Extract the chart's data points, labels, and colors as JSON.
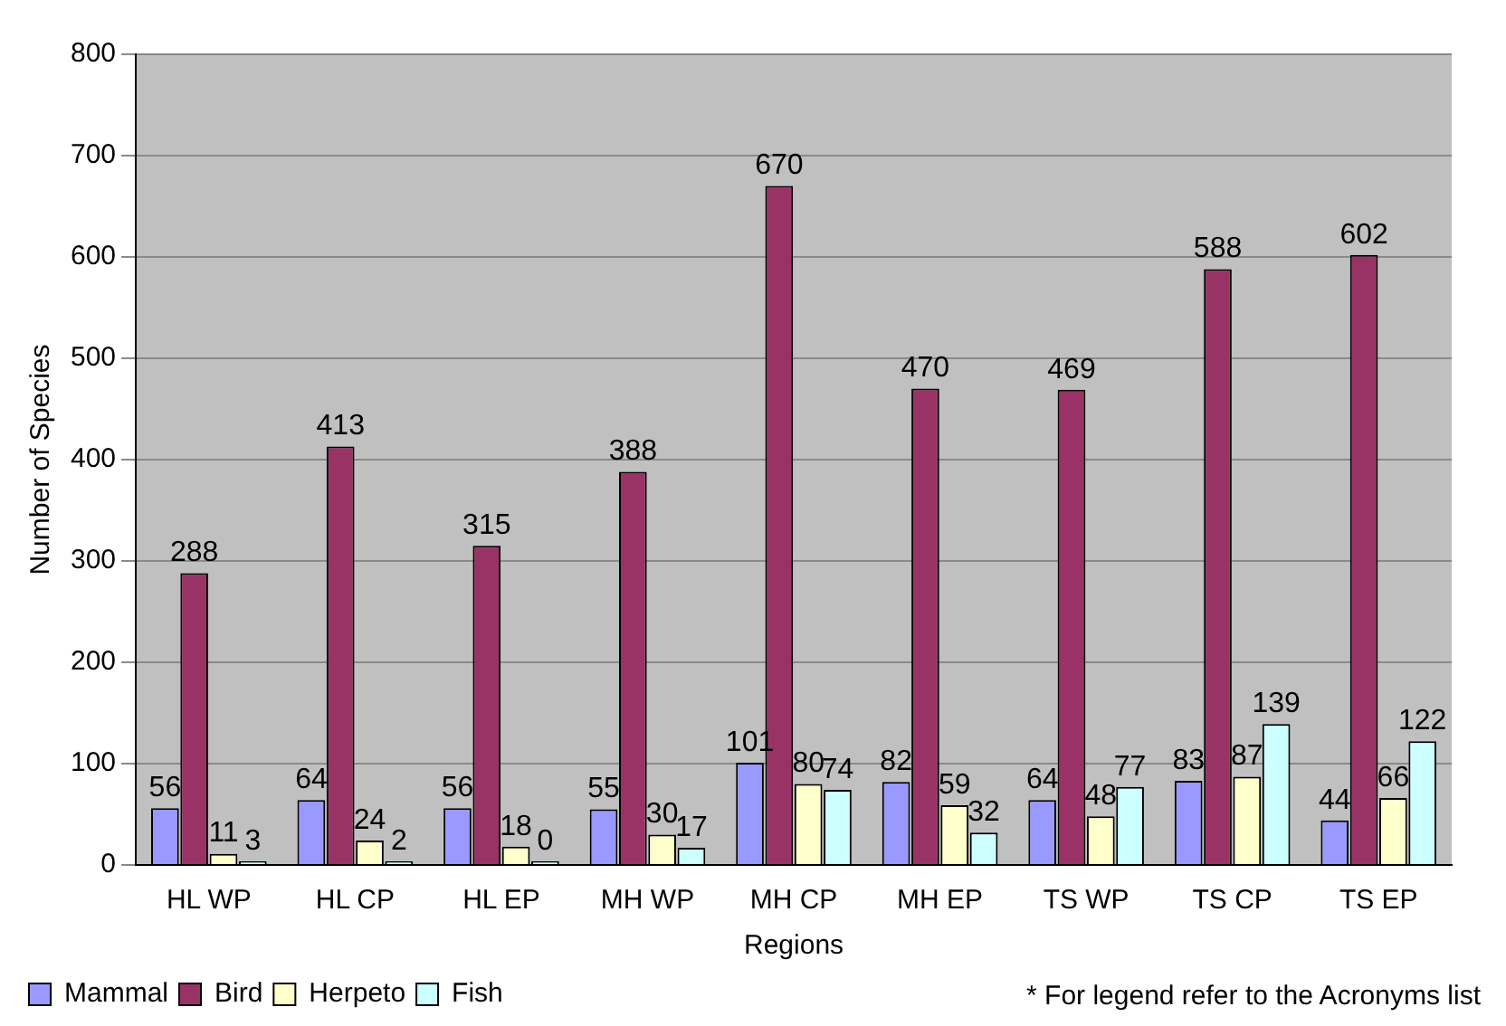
{
  "chart_data": {
    "type": "bar",
    "xlabel": "Regions",
    "ylabel": "Number of Species",
    "categories": [
      "HL WP",
      "HL CP",
      "HL EP",
      "MH WP",
      "MH CP",
      "MH EP",
      "TS WP",
      "TS CP",
      "TS EP"
    ],
    "series": [
      {
        "name": "Mammal",
        "color": "#9999ff",
        "values": [
          56,
          64,
          56,
          55,
          101,
          82,
          64,
          83,
          44
        ]
      },
      {
        "name": "Bird",
        "color": "#993366",
        "values": [
          288,
          413,
          315,
          388,
          670,
          470,
          469,
          588,
          602
        ]
      },
      {
        "name": "Herpeto",
        "color": "#ffffcc",
        "values": [
          11,
          24,
          18,
          30,
          80,
          59,
          48,
          87,
          66
        ]
      },
      {
        "name": "Fish",
        "color": "#ccffff",
        "values": [
          3,
          2,
          0,
          17,
          74,
          32,
          77,
          139,
          122
        ]
      }
    ],
    "ylim": [
      0,
      800
    ],
    "yticks": [
      0,
      100,
      200,
      300,
      400,
      500,
      600,
      700,
      800
    ],
    "grid": "y",
    "legend": "bottom left",
    "data_labels": true,
    "annotations": [
      "* For legend refer to the Acronyms list"
    ]
  }
}
